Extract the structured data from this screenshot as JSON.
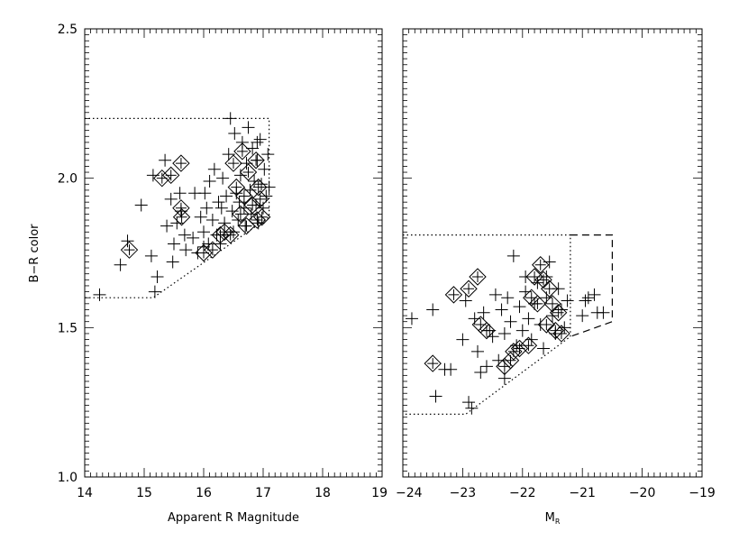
{
  "chart_data": [
    {
      "type": "scatter",
      "title": "",
      "xlabel": "Apparent R Magnitude",
      "ylabel": "B−R color",
      "xlim": [
        14,
        19
      ],
      "ylim": [
        1.0,
        2.5
      ],
      "x_ticks": [
        "14",
        "15",
        "16",
        "17",
        "18",
        "19"
      ],
      "y_ticks": [
        "1.0",
        "1.5",
        "2.0",
        "2.5"
      ],
      "series": [
        {
          "marker": "plus",
          "points": [
            [
              14.25,
              1.61
            ],
            [
              14.6,
              1.71
            ],
            [
              14.72,
              1.79
            ],
            [
              14.95,
              1.91
            ],
            [
              15.12,
              1.74
            ],
            [
              15.18,
              1.62
            ],
            [
              15.22,
              1.67
            ],
            [
              15.15,
              2.01
            ],
            [
              15.35,
              2.06
            ],
            [
              15.45,
              1.93
            ],
            [
              15.38,
              1.84
            ],
            [
              15.5,
              1.78
            ],
            [
              15.55,
              1.85
            ],
            [
              15.48,
              1.72
            ],
            [
              15.6,
              1.95
            ],
            [
              15.62,
              1.89
            ],
            [
              15.68,
              1.81
            ],
            [
              15.7,
              1.76
            ],
            [
              15.82,
              1.8
            ],
            [
              15.85,
              1.95
            ],
            [
              15.9,
              1.75
            ],
            [
              15.95,
              1.87
            ],
            [
              16.0,
              1.82
            ],
            [
              16.02,
              1.95
            ],
            [
              16.05,
              1.9
            ],
            [
              16.08,
              1.78
            ],
            [
              16.1,
              1.99
            ],
            [
              16.15,
              1.86
            ],
            [
              16.18,
              2.03
            ],
            [
              16.22,
              1.81
            ],
            [
              16.25,
              1.92
            ],
            [
              16.28,
              1.78
            ],
            [
              16.32,
              2.0
            ],
            [
              16.35,
              1.85
            ],
            [
              16.38,
              1.94
            ],
            [
              16.42,
              2.08
            ],
            [
              16.45,
              2.2
            ],
            [
              16.48,
              1.89
            ],
            [
              16.5,
              1.82
            ],
            [
              16.52,
              2.15
            ],
            [
              16.55,
              1.95
            ],
            [
              16.58,
              1.86
            ],
            [
              16.62,
              2.01
            ],
            [
              16.65,
              2.12
            ],
            [
              16.68,
              1.9
            ],
            [
              16.7,
              1.84
            ],
            [
              16.72,
              2.05
            ],
            [
              16.75,
              2.17
            ],
            [
              16.78,
              1.96
            ],
            [
              16.8,
              1.88
            ],
            [
              16.82,
              2.1
            ],
            [
              16.85,
              1.99
            ],
            [
              16.88,
              1.91
            ],
            [
              16.9,
              2.06
            ],
            [
              16.92,
              1.85
            ],
            [
              16.95,
              2.13
            ],
            [
              16.97,
              1.98
            ],
            [
              17.0,
              1.9
            ],
            [
              17.02,
              2.03
            ],
            [
              17.05,
              1.94
            ],
            [
              17.08,
              2.08
            ],
            [
              17.1,
              1.97
            ],
            [
              16.9,
              2.12
            ],
            [
              16.6,
              1.92
            ],
            [
              16.3,
              1.9
            ],
            [
              16.0,
              1.77
            ]
          ]
        },
        {
          "marker": "diamond",
          "points": [
            [
              14.75,
              1.76
            ],
            [
              15.3,
              2.0
            ],
            [
              15.45,
              2.01
            ],
            [
              15.62,
              2.05
            ],
            [
              15.63,
              1.87
            ],
            [
              15.62,
              1.9
            ],
            [
              16.0,
              1.75
            ],
            [
              16.15,
              1.76
            ],
            [
              16.28,
              1.81
            ],
            [
              16.35,
              1.82
            ],
            [
              16.45,
              1.81
            ],
            [
              16.5,
              2.05
            ],
            [
              16.55,
              1.97
            ],
            [
              16.62,
              1.88
            ],
            [
              16.65,
              2.09
            ],
            [
              16.68,
              1.94
            ],
            [
              16.72,
              1.84
            ],
            [
              16.75,
              2.02
            ],
            [
              16.82,
              1.91
            ],
            [
              16.88,
              2.06
            ],
            [
              16.9,
              1.86
            ],
            [
              16.92,
              1.97
            ],
            [
              16.95,
              1.93
            ],
            [
              16.98,
              1.87
            ]
          ]
        }
      ],
      "boundaries": [
        {
          "style": "dotted",
          "points": [
            [
              14.0,
              2.2
            ],
            [
              17.1,
              2.2
            ],
            [
              17.1,
              1.87
            ],
            [
              15.15,
              1.6
            ],
            [
              14.0,
              1.6
            ]
          ]
        }
      ]
    },
    {
      "type": "scatter",
      "title": "",
      "xlabel": "M_R",
      "ylabel": "",
      "xlim": [
        -24,
        -19
      ],
      "ylim": [
        1.0,
        2.5
      ],
      "x_ticks": [
        "−24",
        "−23",
        "−22",
        "−21",
        "−20",
        "−19"
      ],
      "y_ticks": [],
      "series": [
        {
          "marker": "plus",
          "points": [
            [
              -23.85,
              1.53
            ],
            [
              -23.5,
              1.56
            ],
            [
              -23.45,
              1.27
            ],
            [
              -23.3,
              1.36
            ],
            [
              -23.2,
              1.36
            ],
            [
              -23.0,
              1.46
            ],
            [
              -22.95,
              1.59
            ],
            [
              -22.9,
              1.25
            ],
            [
              -22.85,
              1.23
            ],
            [
              -22.8,
              1.53
            ],
            [
              -22.75,
              1.42
            ],
            [
              -22.7,
              1.35
            ],
            [
              -22.65,
              1.55
            ],
            [
              -22.55,
              1.49
            ],
            [
              -22.5,
              1.47
            ],
            [
              -22.45,
              1.61
            ],
            [
              -22.4,
              1.39
            ],
            [
              -22.35,
              1.56
            ],
            [
              -22.3,
              1.48
            ],
            [
              -22.25,
              1.6
            ],
            [
              -22.2,
              1.52
            ],
            [
              -22.15,
              1.74
            ],
            [
              -22.1,
              1.44
            ],
            [
              -22.05,
              1.57
            ],
            [
              -22.0,
              1.49
            ],
            [
              -21.95,
              1.62
            ],
            [
              -21.9,
              1.53
            ],
            [
              -21.85,
              1.46
            ],
            [
              -21.8,
              1.58
            ],
            [
              -21.75,
              1.65
            ],
            [
              -21.7,
              1.51
            ],
            [
              -21.65,
              1.43
            ],
            [
              -21.6,
              1.6
            ],
            [
              -21.55,
              1.72
            ],
            [
              -21.5,
              1.54
            ],
            [
              -21.45,
              1.48
            ],
            [
              -21.4,
              1.63
            ],
            [
              -21.35,
              1.56
            ],
            [
              -21.3,
              1.5
            ],
            [
              -21.25,
              1.59
            ],
            [
              -21.0,
              1.54
            ],
            [
              -20.95,
              1.59
            ],
            [
              -20.9,
              1.6
            ],
            [
              -20.8,
              1.61
            ],
            [
              -20.75,
              1.55
            ],
            [
              -20.65,
              1.55
            ],
            [
              -22.6,
              1.37
            ],
            [
              -22.3,
              1.33
            ],
            [
              -21.6,
              1.67
            ],
            [
              -21.95,
              1.67
            ]
          ]
        },
        {
          "marker": "diamond",
          "points": [
            [
              -23.5,
              1.38
            ],
            [
              -23.15,
              1.61
            ],
            [
              -22.9,
              1.63
            ],
            [
              -22.75,
              1.67
            ],
            [
              -22.7,
              1.51
            ],
            [
              -22.6,
              1.49
            ],
            [
              -22.3,
              1.37
            ],
            [
              -22.2,
              1.39
            ],
            [
              -22.15,
              1.42
            ],
            [
              -22.05,
              1.43
            ],
            [
              -21.9,
              1.44
            ],
            [
              -21.85,
              1.6
            ],
            [
              -21.8,
              1.67
            ],
            [
              -21.7,
              1.71
            ],
            [
              -21.65,
              1.66
            ],
            [
              -21.6,
              1.51
            ],
            [
              -21.55,
              1.63
            ],
            [
              -21.5,
              1.58
            ],
            [
              -21.45,
              1.49
            ],
            [
              -21.4,
              1.55
            ],
            [
              -21.35,
              1.48
            ],
            [
              -21.75,
              1.58
            ]
          ]
        }
      ],
      "boundaries": [
        {
          "style": "dotted",
          "points": [
            [
              -24.0,
              1.81
            ],
            [
              -21.2,
              1.81
            ],
            [
              -21.2,
              1.47
            ],
            [
              -22.95,
              1.21
            ],
            [
              -24.0,
              1.21
            ]
          ]
        },
        {
          "style": "dashed",
          "points": [
            [
              -21.2,
              1.81
            ],
            [
              -20.5,
              1.81
            ],
            [
              -20.5,
              1.52
            ],
            [
              -21.2,
              1.47
            ]
          ]
        }
      ]
    }
  ]
}
